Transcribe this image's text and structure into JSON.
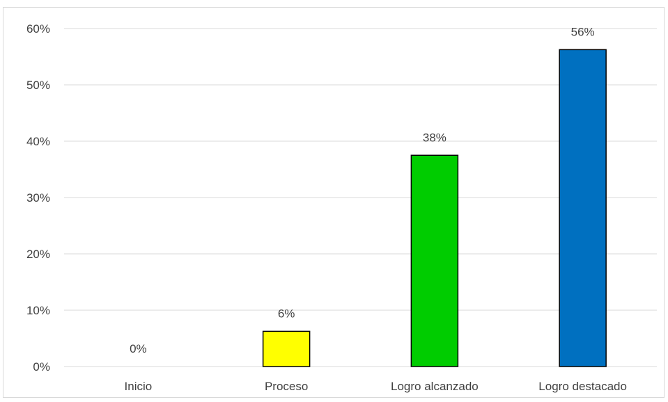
{
  "chart_data": {
    "type": "bar",
    "categories": [
      "Inicio",
      "Proceso",
      "Logro alcanzado",
      "Logro destacado"
    ],
    "values": [
      0,
      6.25,
      37.5,
      56.25
    ],
    "data_labels": [
      "0%",
      "6%",
      "38%",
      "56%"
    ],
    "colors": [
      "#ffffff",
      "#ffff00",
      "#00cc00",
      "#0070c0"
    ],
    "y_ticks": [
      0,
      10,
      20,
      30,
      40,
      50,
      60
    ],
    "y_tick_labels": [
      "0%",
      "10%",
      "20%",
      "30%",
      "40%",
      "50%",
      "60%"
    ],
    "ylim": [
      0,
      60
    ],
    "grid": true,
    "legend": "none",
    "title": "",
    "xlabel": "",
    "ylabel": ""
  }
}
